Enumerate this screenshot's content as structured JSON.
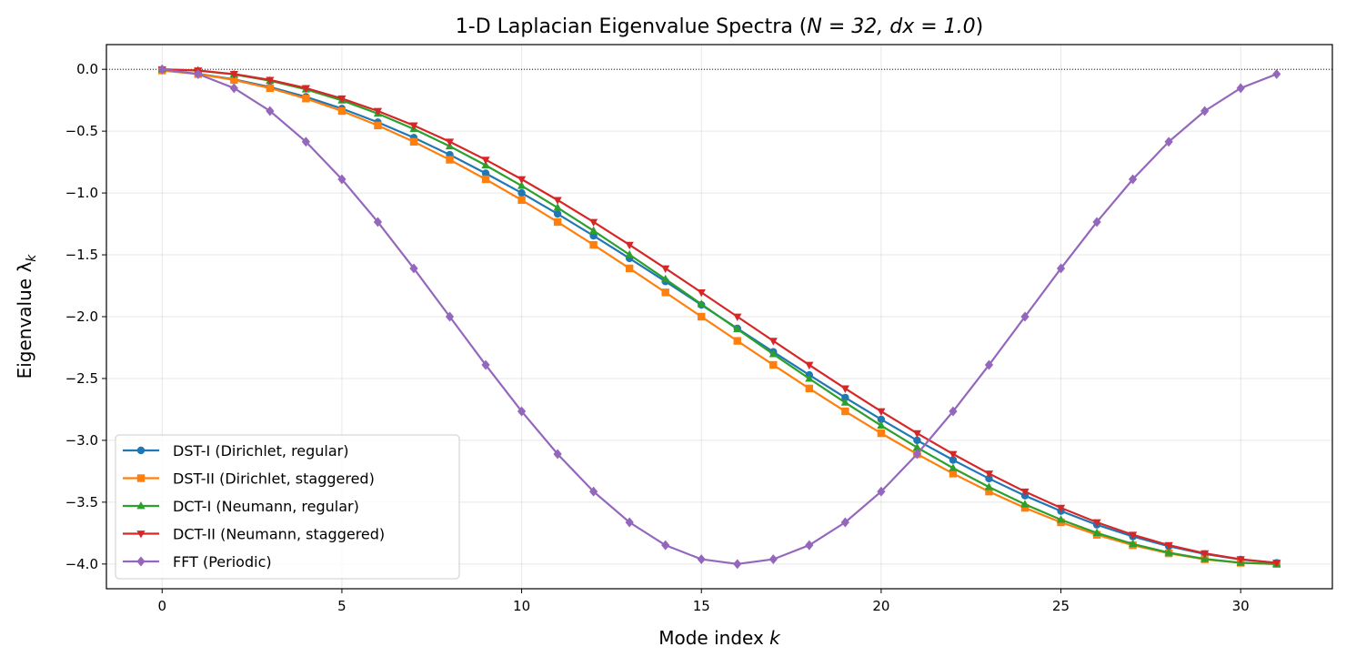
{
  "chart_data": {
    "type": "line",
    "title_main": "1-D Laplacian Eigenvalue Spectra (",
    "title_math": "N = 32, dx = 1.0",
    "title_close": ")",
    "xlabel": "Mode index k",
    "ylabel": "Eigenvalue λ_k",
    "xlim": [
      -1.55,
      32.55
    ],
    "ylim": [
      -4.2,
      0.2
    ],
    "xticks": [
      0,
      5,
      10,
      15,
      20,
      25,
      30
    ],
    "yticks": [
      0.0,
      -0.5,
      -1.0,
      -1.5,
      -2.0,
      -2.5,
      -3.0,
      -3.5,
      -4.0
    ],
    "ytick_labels": [
      "0.0",
      "−0.5",
      "−1.0",
      "−1.5",
      "−2.0",
      "−2.5",
      "−3.0",
      "−3.5",
      "−4.0"
    ],
    "grid": true,
    "reference_line_y": 0,
    "legend_position": "lower-left",
    "x": [
      0,
      1,
      2,
      3,
      4,
      5,
      6,
      7,
      8,
      9,
      10,
      11,
      12,
      13,
      14,
      15,
      16,
      17,
      18,
      19,
      20,
      21,
      22,
      23,
      24,
      25,
      26,
      27,
      28,
      29,
      30,
      31
    ],
    "series": [
      {
        "name": "DST-I (Dirichlet, regular)",
        "color": "#1f77b4",
        "marker": "circle",
        "values": [
          -0.0091,
          -0.0361,
          -0.081,
          -0.1433,
          -0.2223,
          -0.3175,
          -0.4279,
          -0.5526,
          -0.6907,
          -0.841,
          -1.0,
          -1.1692,
          -1.3459,
          -1.5285,
          -1.7154,
          -1.9048,
          -2.0952,
          -2.2846,
          -2.4715,
          -2.6541,
          -2.8308,
          -3.0,
          -3.159,
          -3.3093,
          -3.4474,
          -3.5721,
          -3.6825,
          -3.7777,
          -3.8567,
          -3.919,
          -3.9639,
          -3.9909
        ]
      },
      {
        "name": "DST-II (Dirichlet, staggered)",
        "color": "#ff7f0e",
        "marker": "square",
        "values": [
          -0.0096,
          -0.0384,
          -0.0861,
          -0.1522,
          -0.2362,
          -0.3371,
          -0.454,
          -0.5858,
          -0.7312,
          -0.8889,
          -1.0572,
          -1.2346,
          -1.4194,
          -1.6098,
          -1.804,
          -2.0,
          -2.196,
          -2.3902,
          -2.5806,
          -2.7654,
          -2.9428,
          -3.1111,
          -3.2688,
          -3.4142,
          -3.546,
          -3.6629,
          -3.7638,
          -3.8478,
          -3.9139,
          -3.9616,
          -3.9904,
          -4.0
        ]
      },
      {
        "name": "DCT-I (Neumann, regular)",
        "color": "#2ca02c",
        "marker": "triangle-up",
        "values": [
          0.0,
          -0.0103,
          -0.0409,
          -0.0917,
          -0.1621,
          -0.2513,
          -0.3584,
          -0.4823,
          -0.6221,
          -0.7758,
          -0.9421,
          -1.1192,
          -1.3054,
          -1.4987,
          -1.6971,
          -1.8987,
          -2.1013,
          -2.3029,
          -2.5013,
          -2.6946,
          -2.8808,
          -3.0579,
          -3.2242,
          -3.3779,
          -3.5177,
          -3.6416,
          -3.7487,
          -3.8379,
          -3.9083,
          -3.9591,
          -3.9897,
          -4.0
        ]
      },
      {
        "name": "DCT-II (Neumann, staggered)",
        "color": "#d62728",
        "marker": "triangle-down",
        "values": [
          0.0,
          -0.0096,
          -0.0384,
          -0.0861,
          -0.1522,
          -0.2362,
          -0.3371,
          -0.454,
          -0.5858,
          -0.7312,
          -0.8889,
          -1.0572,
          -1.2346,
          -1.4194,
          -1.6098,
          -1.804,
          -2.0,
          -2.196,
          -2.3902,
          -2.5806,
          -2.7654,
          -2.9428,
          -3.1111,
          -3.2688,
          -3.4142,
          -3.546,
          -3.6629,
          -3.7638,
          -3.8478,
          -3.9139,
          -3.9616,
          -3.9904
        ]
      },
      {
        "name": "FFT (Periodic)",
        "color": "#9467bd",
        "marker": "diamond",
        "values": [
          0.0,
          -0.0384,
          -0.1522,
          -0.3371,
          -0.5858,
          -0.8889,
          -1.2346,
          -1.6098,
          -2.0,
          -2.3902,
          -2.7654,
          -3.1111,
          -3.4142,
          -3.6629,
          -3.8478,
          -3.9616,
          -4.0,
          -3.9616,
          -3.8478,
          -3.6629,
          -3.4142,
          -3.1111,
          -2.7654,
          -2.3902,
          -2.0,
          -1.6098,
          -1.2346,
          -0.8889,
          -0.5858,
          -0.3371,
          -0.1522,
          -0.0384
        ]
      }
    ]
  }
}
